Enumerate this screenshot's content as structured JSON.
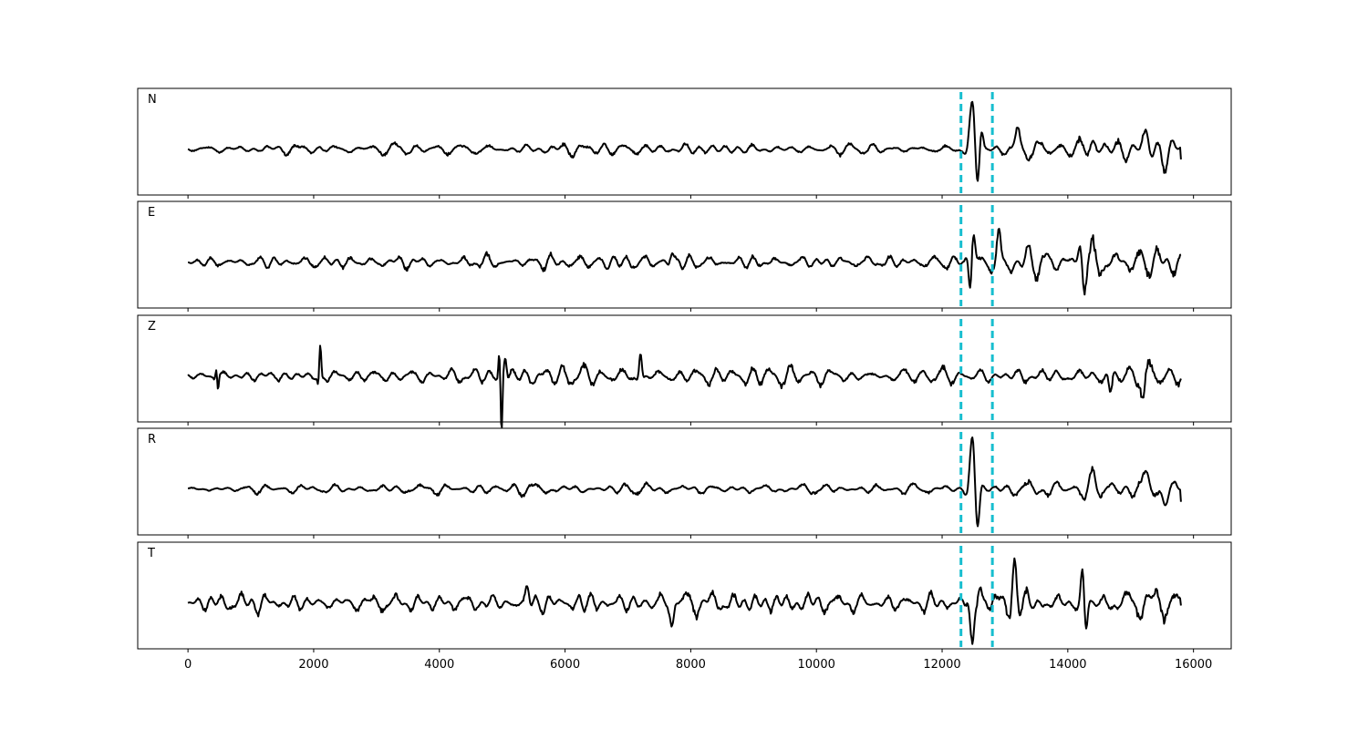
{
  "chart_data": {
    "type": "line",
    "title": "",
    "xlabel": "",
    "ylabel": "",
    "xlim": [
      -800,
      16600
    ],
    "x_ticks": [
      0,
      2000,
      4000,
      6000,
      8000,
      10000,
      12000,
      14000,
      16000
    ],
    "x_tick_labels": [
      "0",
      "2000",
      "4000",
      "6000",
      "8000",
      "10000",
      "12000",
      "14000",
      "16000"
    ],
    "grid": false,
    "line_color": "#000000",
    "pick_color": "#17becf",
    "pick_markers": [
      12300,
      12800
    ],
    "x_range": [
      0,
      15800
    ],
    "panels": [
      {
        "label": "N",
        "ylim": [
          -1,
          1
        ],
        "events": [
          [
            12480,
            0.85,
            120
          ],
          [
            12560,
            -0.6,
            90
          ],
          [
            12620,
            0.35,
            80
          ],
          [
            13200,
            0.35,
            100
          ],
          [
            15250,
            0.3,
            120
          ],
          [
            15550,
            -0.3,
            120
          ],
          [
            14400,
            0.2,
            120
          ]
        ],
        "envelope": [
          [
            0,
            0.06
          ],
          [
            2000,
            0.1
          ],
          [
            5000,
            0.12
          ],
          [
            8000,
            0.12
          ],
          [
            12300,
            0.1
          ],
          [
            13000,
            0.18
          ],
          [
            15800,
            0.22
          ]
        ],
        "seed": 11,
        "end_value": -0.2
      },
      {
        "label": "E",
        "ylim": [
          -1,
          1
        ],
        "events": [
          [
            12480,
            0.72,
            110
          ],
          [
            12450,
            -0.85,
            70
          ],
          [
            12900,
            0.45,
            80
          ],
          [
            14200,
            0.35,
            90
          ],
          [
            14260,
            -0.3,
            80
          ],
          [
            7700,
            0.2,
            80
          ]
        ],
        "envelope": [
          [
            0,
            0.06
          ],
          [
            2000,
            0.1
          ],
          [
            5000,
            0.12
          ],
          [
            8000,
            0.12
          ],
          [
            12300,
            0.1
          ],
          [
            13000,
            0.2
          ],
          [
            15800,
            0.22
          ]
        ],
        "seed": 23,
        "end_value": 0.15
      },
      {
        "label": "Z",
        "ylim": [
          -1,
          1
        ],
        "events": [
          [
            460,
            0.4,
            40
          ],
          [
            470,
            -0.45,
            40
          ],
          [
            2100,
            0.6,
            50
          ],
          [
            2080,
            -0.3,
            40
          ],
          [
            4950,
            0.35,
            40
          ],
          [
            4990,
            -1.0,
            40
          ],
          [
            5050,
            0.4,
            60
          ],
          [
            7200,
            0.45,
            60
          ],
          [
            14680,
            -0.4,
            80
          ],
          [
            15200,
            -0.35,
            80
          ]
        ],
        "envelope": [
          [
            0,
            0.06
          ],
          [
            2000,
            0.12
          ],
          [
            5000,
            0.18
          ],
          [
            8000,
            0.2
          ],
          [
            12300,
            0.16
          ],
          [
            13000,
            0.2
          ],
          [
            15800,
            0.28
          ]
        ],
        "seed": 37,
        "end_value": -0.05
      },
      {
        "label": "R",
        "ylim": [
          -1,
          1
        ],
        "events": [
          [
            12480,
            0.95,
            110
          ],
          [
            12560,
            -0.7,
            90
          ],
          [
            15250,
            0.3,
            120
          ],
          [
            15550,
            -0.3,
            120
          ],
          [
            14400,
            0.2,
            120
          ]
        ],
        "envelope": [
          [
            0,
            0.05
          ],
          [
            2000,
            0.1
          ],
          [
            5000,
            0.12
          ],
          [
            8000,
            0.12
          ],
          [
            12300,
            0.1
          ],
          [
            13000,
            0.18
          ],
          [
            15800,
            0.22
          ]
        ],
        "seed": 49,
        "end_value": -0.25
      },
      {
        "label": "T",
        "ylim": [
          -1,
          1
        ],
        "events": [
          [
            12480,
            -0.95,
            90
          ],
          [
            12600,
            0.45,
            80
          ],
          [
            13150,
            0.7,
            90
          ],
          [
            14240,
            0.65,
            80
          ],
          [
            14280,
            -0.6,
            80
          ],
          [
            7700,
            -0.35,
            80
          ],
          [
            5400,
            0.3,
            80
          ]
        ],
        "envelope": [
          [
            0,
            0.1
          ],
          [
            2000,
            0.14
          ],
          [
            5000,
            0.18
          ],
          [
            8000,
            0.18
          ],
          [
            12300,
            0.14
          ],
          [
            13000,
            0.3
          ],
          [
            15800,
            0.24
          ]
        ],
        "seed": 61,
        "end_value": -0.05
      }
    ]
  }
}
